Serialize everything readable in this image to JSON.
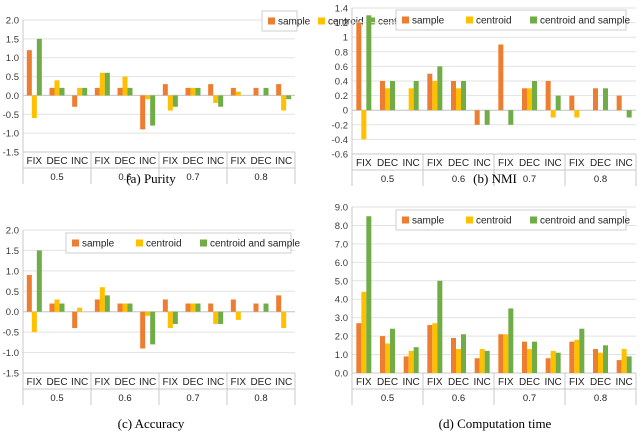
{
  "colors": {
    "sample": "#ED7D31",
    "centroid": "#FFC000",
    "centroid_and_sample": "#70AD47"
  },
  "chart_data": [
    {
      "type": "bar",
      "caption": "(a) Purity",
      "categories": [
        "FIX",
        "DEC",
        "INC",
        "FIX",
        "DEC",
        "INC",
        "FIX",
        "DEC",
        "INC",
        "FIX",
        "DEC",
        "INC"
      ],
      "groups": [
        "0.5",
        "0.6",
        "0.7",
        "0.8"
      ],
      "ylim": [
        -1.5,
        2
      ],
      "yticks": [
        "-1.5",
        "-1.0",
        "-0.5",
        "0.0",
        "0.5",
        "1.0",
        "1.5",
        "2.0"
      ],
      "series": [
        {
          "name": "sample",
          "values": [
            1.2,
            0.2,
            -0.3,
            0.2,
            0.2,
            -0.9,
            0.3,
            0.2,
            0.3,
            0.2,
            0.2,
            0.3
          ]
        },
        {
          "name": "centroid",
          "values": [
            -0.6,
            0.4,
            0.2,
            0.6,
            0.5,
            -0.1,
            -0.4,
            0.2,
            -0.2,
            0.1,
            0.0,
            -0.4
          ]
        },
        {
          "name": "centroid and sample",
          "values": [
            1.5,
            0.2,
            0.2,
            0.6,
            0.2,
            -0.8,
            -0.3,
            0.2,
            -0.3,
            0.0,
            0.2,
            -0.1
          ]
        }
      ]
    },
    {
      "type": "bar",
      "caption": "(b) NMI",
      "categories": [
        "FIX",
        "DEC",
        "INC",
        "FIX",
        "DEC",
        "INC",
        "FIX",
        "DEC",
        "INC",
        "FIX",
        "DEC",
        "INC"
      ],
      "groups": [
        "0.5",
        "0.6",
        "0.7",
        "0.8"
      ],
      "ylim": [
        -0.6,
        1.4
      ],
      "yticks": [
        "-0.6",
        "-0.4",
        "-0.2",
        "0",
        "0.2",
        "0.4",
        "0.6",
        "0.8",
        "1",
        "1.2",
        "1.4"
      ],
      "series": [
        {
          "name": "sample",
          "values": [
            1.2,
            0.4,
            0.0,
            0.5,
            0.4,
            -0.2,
            0.9,
            0.3,
            0.4,
            0.2,
            0.3,
            0.2
          ]
        },
        {
          "name": "centroid",
          "values": [
            -0.4,
            0.3,
            0.3,
            0.4,
            0.3,
            0.0,
            0.0,
            0.3,
            -0.1,
            -0.1,
            0.0,
            0.0
          ]
        },
        {
          "name": "centroid and sample",
          "values": [
            1.3,
            0.4,
            0.4,
            0.6,
            0.4,
            -0.2,
            -0.2,
            0.4,
            0.2,
            0.0,
            0.3,
            -0.1
          ]
        }
      ]
    },
    {
      "type": "bar",
      "caption": "(c) Accuracy",
      "categories": [
        "FIX",
        "DEC",
        "INC",
        "FIX",
        "DEC",
        "INC",
        "FIX",
        "DEC",
        "INC",
        "FIX",
        "DEC",
        "INC"
      ],
      "groups": [
        "0.5",
        "0.6",
        "0.7",
        "0.8"
      ],
      "ylim": [
        -1.5,
        2
      ],
      "yticks": [
        "-1.5",
        "-1.0",
        "-0.5",
        "0.0",
        "0.5",
        "1.0",
        "1.5",
        "2.0"
      ],
      "series": [
        {
          "name": "sample",
          "values": [
            0.9,
            0.2,
            -0.4,
            0.3,
            0.2,
            -0.9,
            0.3,
            0.2,
            0.2,
            0.3,
            0.2,
            0.4
          ]
        },
        {
          "name": "centroid",
          "values": [
            -0.5,
            0.3,
            0.1,
            0.6,
            0.2,
            -0.1,
            -0.4,
            0.2,
            -0.3,
            -0.2,
            0.0,
            -0.4
          ]
        },
        {
          "name": "centroid and sample",
          "values": [
            1.5,
            0.2,
            0.0,
            0.4,
            0.2,
            -0.8,
            -0.3,
            0.2,
            -0.3,
            0.0,
            0.2,
            0.0
          ]
        }
      ]
    },
    {
      "type": "bar",
      "caption": "(d) Computation time",
      "categories": [
        "FIX",
        "DEC",
        "INC",
        "FIX",
        "DEC",
        "INC",
        "FIX",
        "DEC",
        "INC",
        "FIX",
        "DEC",
        "INC"
      ],
      "groups": [
        "0.5",
        "0.6",
        "0.7",
        "0.8"
      ],
      "ylim": [
        0,
        9
      ],
      "yticks": [
        "0.0",
        "1.0",
        "2.0",
        "3.0",
        "4.0",
        "5.0",
        "6.0",
        "7.0",
        "8.0",
        "9.0"
      ],
      "series": [
        {
          "name": "sample",
          "values": [
            2.7,
            2.0,
            0.9,
            2.6,
            1.9,
            0.8,
            2.1,
            1.7,
            0.8,
            1.7,
            1.3,
            0.7
          ]
        },
        {
          "name": "centroid",
          "values": [
            4.4,
            1.6,
            1.2,
            2.7,
            1.3,
            1.3,
            2.1,
            1.3,
            1.2,
            1.8,
            1.1,
            1.3
          ]
        },
        {
          "name": "centroid and sample",
          "values": [
            8.5,
            2.4,
            1.4,
            5.0,
            2.1,
            1.2,
            3.5,
            1.7,
            1.1,
            2.4,
            1.5,
            0.9
          ]
        }
      ]
    }
  ]
}
